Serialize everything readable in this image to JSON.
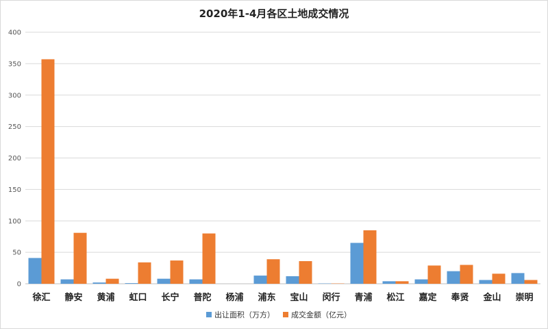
{
  "chart_data": {
    "type": "bar",
    "title": "2020年1-4月各区土地成交情况",
    "xlabel": "",
    "ylabel": "",
    "ylim": [
      0,
      400
    ],
    "yticks": [
      0,
      50,
      100,
      150,
      200,
      250,
      300,
      350,
      400
    ],
    "grid": true,
    "legend_position": "bottom",
    "categories": [
      "徐汇",
      "静安",
      "黄浦",
      "虹口",
      "长宁",
      "普陀",
      "杨浦",
      "浦东",
      "宝山",
      "闵行",
      "青浦",
      "松江",
      "嘉定",
      "奉贤",
      "金山",
      "崇明"
    ],
    "series": [
      {
        "name": "出让面积（万方）",
        "color": "#5b9bd5",
        "values": [
          41,
          7,
          2,
          1,
          8,
          7,
          0,
          13,
          12,
          0.5,
          65,
          4,
          7,
          20,
          6,
          17
        ]
      },
      {
        "name": "成交金额（亿元）",
        "color": "#ed7d31",
        "values": [
          357,
          81,
          8,
          34,
          37,
          80,
          0,
          39,
          36,
          0.5,
          85,
          4,
          29,
          30,
          16,
          6
        ]
      }
    ]
  }
}
